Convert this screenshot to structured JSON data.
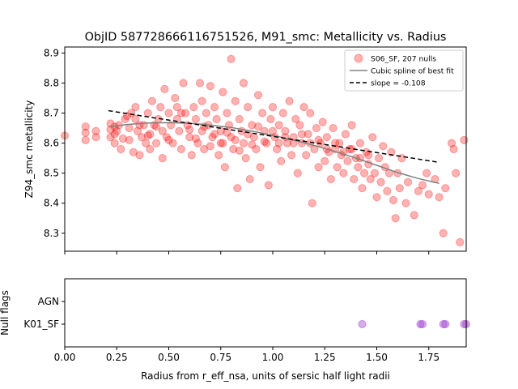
{
  "chart_data": [
    {
      "type": "scatter",
      "title": "ObjID 587728666116751526, M91_smc: Metallicity vs. Radius",
      "xlabel": "",
      "ylabel": "Z94_smc metallicity",
      "xlim": [
        0.0,
        1.93
      ],
      "ylim": [
        8.24,
        8.92
      ],
      "yticks": [
        "8.3",
        "8.4",
        "8.5",
        "8.6",
        "8.7",
        "8.8",
        "8.9"
      ],
      "grid": false,
      "legend_position": "top-right",
      "legend": {
        "points_label": "S06_SF, 207 nulls",
        "spline_label": "Cubic spline of best fit",
        "slope_label": "slope = -0.108"
      },
      "colors": {
        "points": "#ff0000",
        "spline": "#808080",
        "fit": "#000000"
      },
      "series": [
        {
          "name": "S06_SF, 207 nulls",
          "kind": "scatter",
          "points": [
            [
              0.0,
              8.625
            ],
            [
              0.1,
              8.655
            ],
            [
              0.1,
              8.635
            ],
            [
              0.1,
              8.61
            ],
            [
              0.15,
              8.64
            ],
            [
              0.15,
              8.62
            ],
            [
              0.22,
              8.665
            ],
            [
              0.22,
              8.645
            ],
            [
              0.22,
              8.62
            ],
            [
              0.24,
              8.655
            ],
            [
              0.24,
              8.63
            ],
            [
              0.24,
              8.6
            ],
            [
              0.26,
              8.66
            ],
            [
              0.27,
              8.58
            ],
            [
              0.3,
              8.69
            ],
            [
              0.31,
              8.65
            ],
            [
              0.31,
              8.61
            ],
            [
              0.32,
              8.7
            ],
            [
              0.33,
              8.57
            ],
            [
              0.34,
              8.72
            ],
            [
              0.34,
              8.68
            ],
            [
              0.35,
              8.64
            ],
            [
              0.36,
              8.56
            ],
            [
              0.37,
              8.62
            ],
            [
              0.38,
              8.66
            ],
            [
              0.39,
              8.6
            ],
            [
              0.4,
              8.7
            ],
            [
              0.41,
              8.63
            ],
            [
              0.41,
              8.58
            ],
            [
              0.42,
              8.74
            ],
            [
              0.43,
              8.66
            ],
            [
              0.44,
              8.6
            ],
            [
              0.45,
              8.68
            ],
            [
              0.46,
              8.72
            ],
            [
              0.47,
              8.64
            ],
            [
              0.47,
              8.55
            ],
            [
              0.48,
              8.78
            ],
            [
              0.49,
              8.62
            ],
            [
              0.5,
              8.7
            ],
            [
              0.51,
              8.66
            ],
            [
              0.52,
              8.6
            ],
            [
              0.53,
              8.75
            ],
            [
              0.54,
              8.72
            ],
            [
              0.54,
              8.68
            ],
            [
              0.55,
              8.64
            ],
            [
              0.56,
              8.58
            ],
            [
              0.57,
              8.8
            ],
            [
              0.58,
              8.7
            ],
            [
              0.59,
              8.66
            ],
            [
              0.6,
              8.62
            ],
            [
              0.61,
              8.56
            ],
            [
              0.62,
              8.72
            ],
            [
              0.63,
              8.68
            ],
            [
              0.64,
              8.6
            ],
            [
              0.65,
              8.8
            ],
            [
              0.66,
              8.74
            ],
            [
              0.66,
              8.64
            ],
            [
              0.67,
              8.58
            ],
            [
              0.68,
              8.7
            ],
            [
              0.69,
              8.66
            ],
            [
              0.7,
              8.79
            ],
            [
              0.71,
              8.62
            ],
            [
              0.72,
              8.72
            ],
            [
              0.73,
              8.68
            ],
            [
              0.74,
              8.56
            ],
            [
              0.75,
              8.64
            ],
            [
              0.76,
              8.77
            ],
            [
              0.76,
              8.6
            ],
            [
              0.77,
              8.52
            ],
            [
              0.78,
              8.7
            ],
            [
              0.79,
              8.66
            ],
            [
              0.8,
              8.62
            ],
            [
              0.8,
              8.88
            ],
            [
              0.81,
              8.58
            ],
            [
              0.82,
              8.74
            ],
            [
              0.83,
              8.45
            ],
            [
              0.84,
              8.68
            ],
            [
              0.85,
              8.64
            ],
            [
              0.86,
              8.6
            ],
            [
              0.86,
              8.8
            ],
            [
              0.87,
              8.55
            ],
            [
              0.88,
              8.72
            ],
            [
              0.89,
              8.48
            ],
            [
              0.9,
              8.66
            ],
            [
              0.91,
              8.62
            ],
            [
              0.92,
              8.58
            ],
            [
              0.93,
              8.76
            ],
            [
              0.94,
              8.52
            ],
            [
              0.95,
              8.7
            ],
            [
              0.96,
              8.64
            ],
            [
              0.97,
              8.6
            ],
            [
              0.98,
              8.46
            ],
            [
              0.99,
              8.68
            ],
            [
              1.0,
              8.72
            ],
            [
              1.01,
              8.62
            ],
            [
              1.02,
              8.58
            ],
            [
              1.03,
              8.66
            ],
            [
              1.04,
              8.54
            ],
            [
              1.05,
              8.7
            ],
            [
              1.06,
              8.64
            ],
            [
              1.07,
              8.6
            ],
            [
              1.08,
              8.74
            ],
            [
              1.09,
              8.56
            ],
            [
              1.1,
              8.62
            ],
            [
              1.11,
              8.68
            ],
            [
              1.12,
              8.5
            ],
            [
              1.13,
              8.66
            ],
            [
              1.14,
              8.6
            ],
            [
              1.15,
              8.72
            ],
            [
              1.16,
              8.56
            ],
            [
              1.17,
              8.63
            ],
            [
              1.18,
              8.7
            ],
            [
              1.19,
              8.4
            ],
            [
              1.2,
              8.58
            ],
            [
              1.21,
              8.65
            ],
            [
              1.22,
              8.52
            ],
            [
              1.23,
              8.6
            ],
            [
              1.24,
              8.67
            ],
            [
              1.25,
              8.54
            ],
            [
              1.26,
              8.62
            ],
            [
              1.27,
              8.57
            ],
            [
              1.28,
              8.48
            ],
            [
              1.29,
              8.65
            ],
            [
              1.3,
              8.58
            ],
            [
              1.31,
              8.52
            ],
            [
              1.32,
              8.6
            ],
            [
              1.33,
              8.56
            ],
            [
              1.34,
              8.5
            ],
            [
              1.35,
              8.63
            ],
            [
              1.36,
              8.54
            ],
            [
              1.37,
              8.58
            ],
            [
              1.38,
              8.66
            ],
            [
              1.39,
              8.48
            ],
            [
              1.4,
              8.55
            ],
            [
              1.41,
              8.52
            ],
            [
              1.42,
              8.6
            ],
            [
              1.43,
              8.45
            ],
            [
              1.44,
              8.5
            ],
            [
              1.45,
              8.57
            ],
            [
              1.46,
              8.53
            ],
            [
              1.47,
              8.48
            ],
            [
              1.48,
              8.62
            ],
            [
              1.49,
              8.5
            ],
            [
              1.5,
              8.42
            ],
            [
              1.51,
              8.55
            ],
            [
              1.52,
              8.47
            ],
            [
              1.53,
              8.59
            ],
            [
              1.54,
              8.52
            ],
            [
              1.55,
              8.44
            ],
            [
              1.56,
              8.5
            ],
            [
              1.57,
              8.57
            ],
            [
              1.58,
              8.41
            ],
            [
              1.59,
              8.35
            ],
            [
              1.6,
              8.5
            ],
            [
              1.61,
              8.45
            ],
            [
              1.62,
              8.55
            ],
            [
              1.64,
              8.4
            ],
            [
              1.65,
              8.47
            ],
            [
              1.68,
              8.36
            ],
            [
              1.7,
              8.44
            ],
            [
              1.72,
              8.46
            ],
            [
              1.74,
              8.5
            ],
            [
              1.75,
              8.43
            ],
            [
              1.78,
              8.48
            ],
            [
              1.8,
              8.42
            ],
            [
              1.82,
              8.3
            ],
            [
              1.83,
              8.45
            ],
            [
              1.86,
              8.6
            ],
            [
              1.87,
              8.58
            ],
            [
              1.88,
              8.5
            ],
            [
              1.9,
              8.27
            ],
            [
              1.92,
              8.61
            ],
            [
              0.25,
              8.64
            ],
            [
              0.28,
              8.615
            ],
            [
              0.29,
              8.68
            ],
            [
              0.36,
              8.66
            ],
            [
              0.4,
              8.625
            ],
            [
              0.44,
              8.655
            ],
            [
              0.5,
              8.61
            ],
            [
              0.56,
              8.7
            ],
            [
              0.6,
              8.645
            ],
            [
              0.63,
              8.615
            ],
            [
              0.67,
              8.655
            ],
            [
              0.7,
              8.59
            ],
            [
              0.72,
              8.63
            ],
            [
              0.75,
              8.6
            ],
            [
              0.78,
              8.635
            ],
            [
              0.82,
              8.61
            ],
            [
              0.84,
              8.575
            ],
            [
              0.88,
              8.63
            ],
            [
              0.9,
              8.595
            ],
            [
              0.93,
              8.655
            ],
            [
              0.96,
              8.605
            ],
            [
              1.0,
              8.64
            ],
            [
              1.03,
              8.6
            ],
            [
              1.06,
              8.62
            ],
            [
              1.1,
              8.6
            ],
            [
              1.14,
              8.63
            ],
            [
              1.18,
              8.6
            ],
            [
              1.22,
              8.61
            ],
            [
              1.26,
              8.58
            ],
            [
              1.3,
              8.6
            ],
            [
              1.34,
              8.57
            ],
            [
              1.38,
              8.58
            ],
            [
              1.42,
              8.55
            ],
            [
              1.46,
              8.56
            ]
          ]
        },
        {
          "name": "Cubic spline of best fit",
          "kind": "line",
          "points": [
            [
              0.22,
              8.655
            ],
            [
              0.3,
              8.662
            ],
            [
              0.4,
              8.667
            ],
            [
              0.5,
              8.668
            ],
            [
              0.6,
              8.666
            ],
            [
              0.7,
              8.66
            ],
            [
              0.8,
              8.652
            ],
            [
              0.9,
              8.64
            ],
            [
              1.0,
              8.626
            ],
            [
              1.1,
              8.61
            ],
            [
              1.2,
              8.592
            ],
            [
              1.3,
              8.572
            ],
            [
              1.4,
              8.55
            ],
            [
              1.5,
              8.526
            ],
            [
              1.6,
              8.502
            ],
            [
              1.7,
              8.482
            ],
            [
              1.8,
              8.466
            ]
          ]
        },
        {
          "name": "slope = -0.108",
          "kind": "dashed-line",
          "points": [
            [
              0.21,
              8.708
            ],
            [
              1.8,
              8.536
            ]
          ]
        }
      ]
    },
    {
      "type": "scatter",
      "title": "",
      "xlabel": "Radius from r_eff_nsa, units of sersic half light radii",
      "ylabel": "Null flags",
      "xlim": [
        0.0,
        1.93
      ],
      "xticks": [
        "0.00",
        "0.25",
        "0.50",
        "0.75",
        "1.00",
        "1.25",
        "1.50",
        "1.75"
      ],
      "categories": [
        "AGN",
        "K01_SF"
      ],
      "colors": {
        "points": "#9932cc"
      },
      "series": [
        {
          "kind": "scatter",
          "category": "K01_SF",
          "x": [
            1.43,
            1.71,
            1.72,
            1.82,
            1.83,
            1.92,
            1.93
          ]
        }
      ]
    }
  ]
}
